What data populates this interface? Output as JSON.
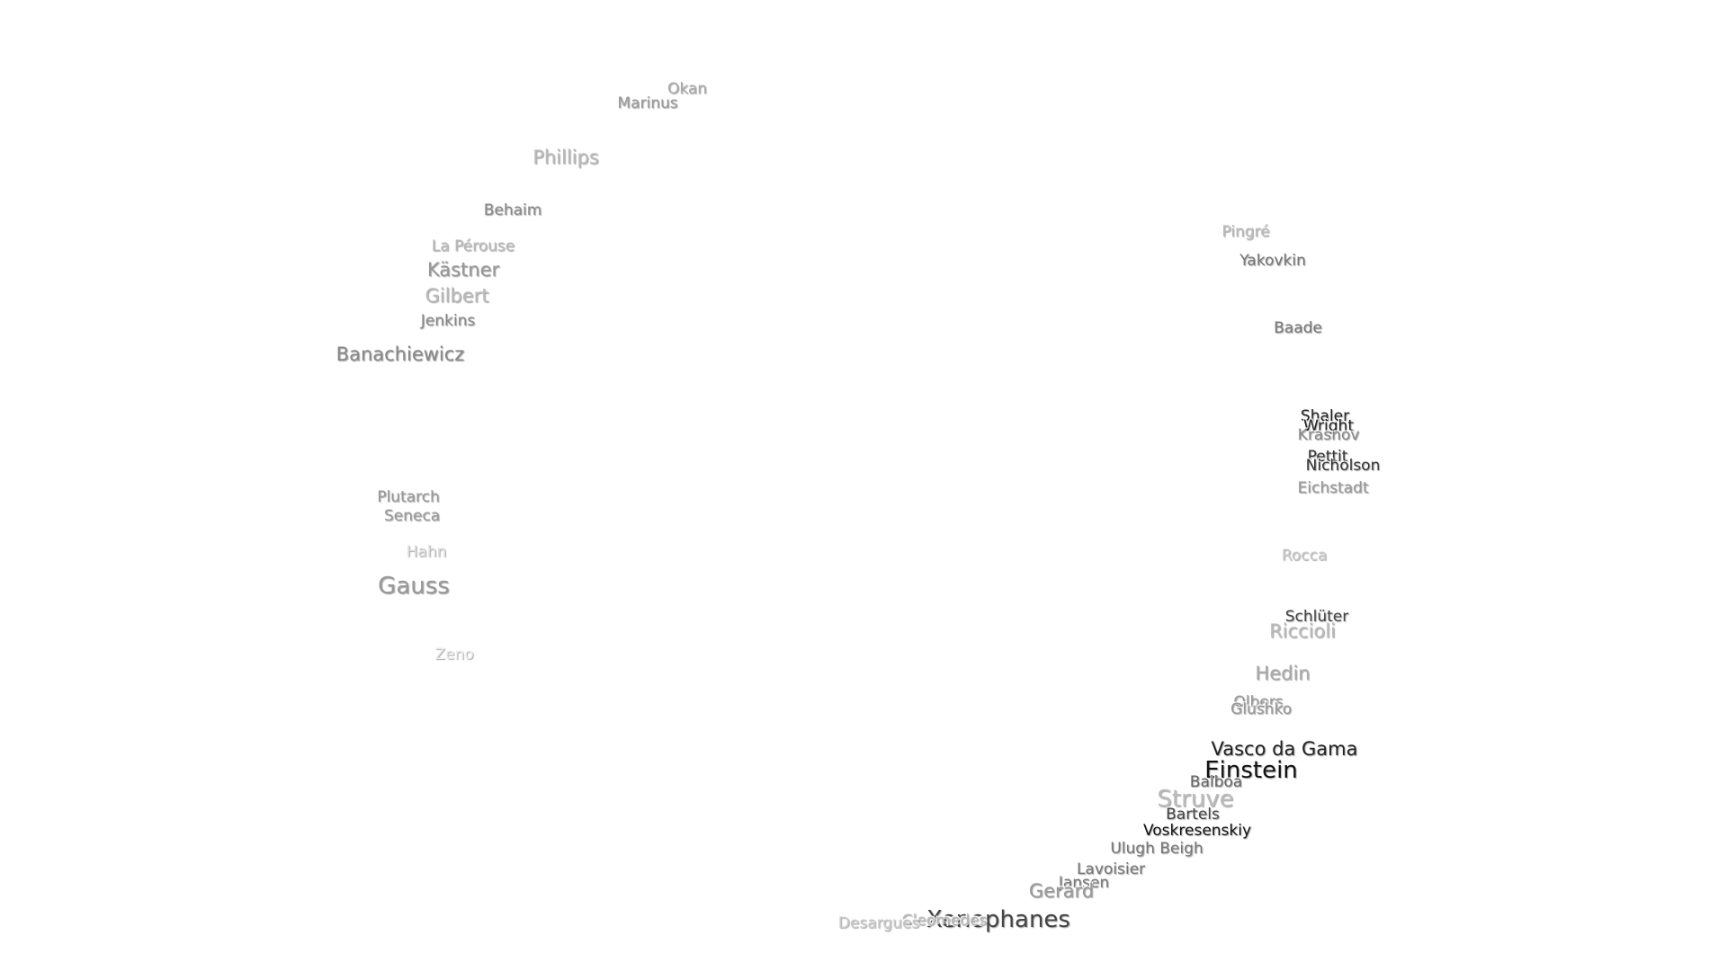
{
  "labels": [
    "Okan",
    "Marinus",
    "Phillips",
    "Behaim",
    "La Pérouse",
    "Kästner",
    "Gilbert",
    "Jenkins",
    "Banachiewicz",
    "Plutarch",
    "Seneca",
    "Hahn",
    "Gauss",
    "Zeno",
    "Pingré",
    "Yakovkin",
    "Baade",
    "Shaler",
    "Wright",
    "Krasnov",
    "Pettit",
    "Nicholson",
    "Eichstadt",
    "Rocca",
    "Schlüter",
    "Riccioli",
    "Hedin",
    "Olbers",
    "Glushko",
    "Vasco da Gama",
    "Einstein",
    "Balboa",
    "Struve",
    "Bartels",
    "Voskresenskiy",
    "Ulugh Beigh",
    "Lavoisier",
    "Jansen",
    "Gerard",
    "Xenophanes",
    "Cleomedes",
    "Desargues"
  ]
}
